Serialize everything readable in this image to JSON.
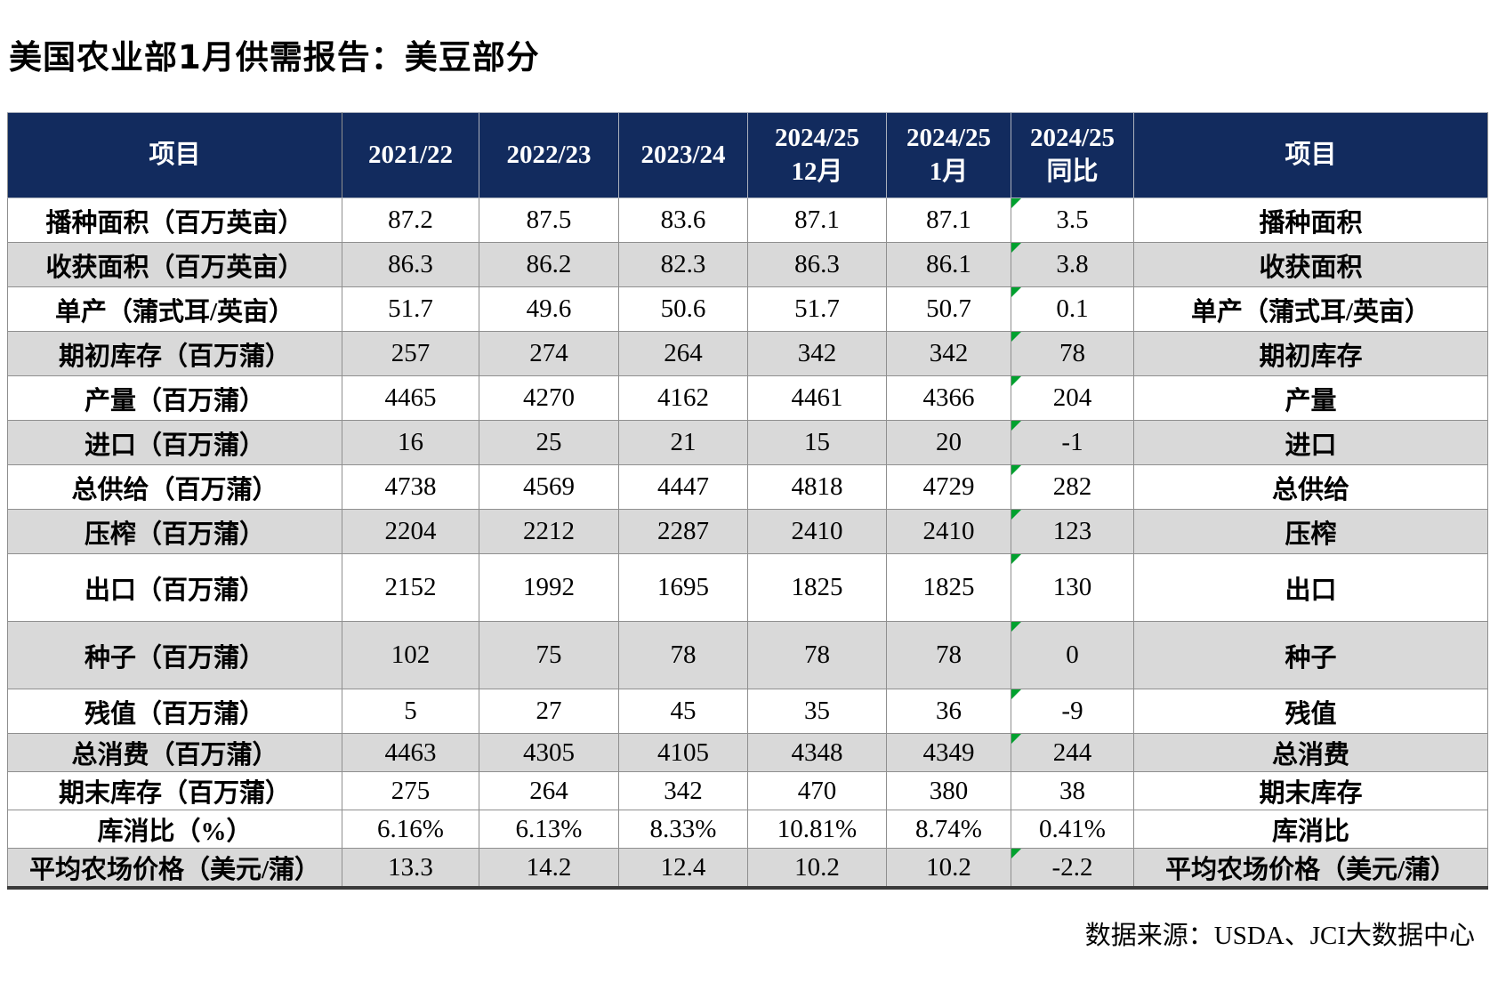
{
  "title": "美国农业部1月供需报告：美豆部分",
  "source_note": "数据来源：USDA、JCI大数据中心",
  "colors": {
    "header_bg": "#122B5E",
    "header_text": "#FFFFFF",
    "stripe_gray": "#D9D9D9",
    "value_red": "#FF0000",
    "flag_green": "#00A12F",
    "grid_line": "#8F8F8F"
  },
  "table": {
    "columns": [
      {
        "lines": [
          "项目"
        ]
      },
      {
        "lines": [
          "2021/22"
        ]
      },
      {
        "lines": [
          "2022/23"
        ]
      },
      {
        "lines": [
          "2023/24"
        ]
      },
      {
        "lines": [
          "2024/25",
          "12月"
        ]
      },
      {
        "lines": [
          "2024/25",
          "1月"
        ]
      },
      {
        "lines": [
          "2024/25",
          "同比"
        ]
      },
      {
        "lines": [
          "项目"
        ]
      }
    ],
    "rows": [
      {
        "label": "播种面积（百万英亩）",
        "values": [
          "87.2",
          "87.5",
          "83.6",
          "87.1",
          "87.1",
          "3.5"
        ],
        "label_right": "播种面积",
        "stripe": false,
        "flag": true,
        "size": "md",
        "red_cols": []
      },
      {
        "label": "收获面积（百万英亩）",
        "values": [
          "86.3",
          "86.2",
          "82.3",
          "86.3",
          "86.1",
          "3.8"
        ],
        "label_right": "收获面积",
        "stripe": true,
        "flag": true,
        "size": "md",
        "red_cols": []
      },
      {
        "label": "单产（蒲式耳/英亩）",
        "values": [
          "51.7",
          "49.6",
          "50.6",
          "51.7",
          "50.7",
          "0.1"
        ],
        "label_right": "单产（蒲式耳/英亩）",
        "stripe": false,
        "flag": true,
        "size": "md",
        "red_cols": []
      },
      {
        "label": "期初库存（百万蒲）",
        "values": [
          "257",
          "274",
          "264",
          "342",
          "342",
          "78"
        ],
        "label_right": "期初库存",
        "stripe": true,
        "flag": true,
        "size": "md",
        "red_cols": []
      },
      {
        "label": "产量（百万蒲）",
        "values": [
          "4465",
          "4270",
          "4162",
          "4461",
          "4366",
          "204"
        ],
        "label_right": "产量",
        "stripe": false,
        "flag": true,
        "size": "md",
        "red_cols": []
      },
      {
        "label": "进口（百万蒲）",
        "values": [
          "16",
          "25",
          "21",
          "15",
          "20",
          "-1"
        ],
        "label_right": "进口",
        "stripe": true,
        "flag": true,
        "size": "md",
        "red_cols": []
      },
      {
        "label": "总供给（百万蒲）",
        "values": [
          "4738",
          "4569",
          "4447",
          "4818",
          "4729",
          "282"
        ],
        "label_right": "总供给",
        "stripe": false,
        "flag": true,
        "size": "md",
        "red_cols": []
      },
      {
        "label": "压榨（百万蒲）",
        "values": [
          "2204",
          "2212",
          "2287",
          "2410",
          "2410",
          "123"
        ],
        "label_right": "压榨",
        "stripe": true,
        "flag": true,
        "size": "md",
        "red_cols": []
      },
      {
        "label": "出口（百万蒲）",
        "values": [
          "2152",
          "1992",
          "1695",
          "1825",
          "1825",
          "130"
        ],
        "label_right": "出口",
        "stripe": false,
        "flag": true,
        "size": "lg",
        "red_cols": []
      },
      {
        "label": "种子（百万蒲）",
        "values": [
          "102",
          "75",
          "78",
          "78",
          "78",
          "0"
        ],
        "label_right": "种子",
        "stripe": true,
        "flag": true,
        "size": "lg",
        "red_cols": []
      },
      {
        "label": "残值（百万蒲）",
        "values": [
          "5",
          "27",
          "45",
          "35",
          "36",
          "-9"
        ],
        "label_right": "残值",
        "stripe": false,
        "flag": true,
        "size": "md",
        "red_cols": []
      },
      {
        "label": "总消费（百万蒲）",
        "values": [
          "4463",
          "4305",
          "4105",
          "4348",
          "4349",
          "244"
        ],
        "label_right": "总消费",
        "stripe": true,
        "flag": true,
        "size": "sm",
        "red_cols": []
      },
      {
        "label": "期末库存（百万蒲）",
        "values": [
          "275",
          "264",
          "342",
          "470",
          "380",
          "38"
        ],
        "label_right": "期末库存",
        "stripe": false,
        "flag": false,
        "size": "sm",
        "red_cols": []
      },
      {
        "label": "库消比（%）",
        "values": [
          "6.16%",
          "6.13%",
          "8.33%",
          "10.81%",
          "8.74%",
          "0.41%"
        ],
        "label_right": "库消比",
        "stripe": false,
        "flag": false,
        "size": "sm",
        "red_cols": []
      },
      {
        "label": "平均农场价格（美元/蒲）",
        "values": [
          "13.3",
          "14.2",
          "12.4",
          "10.2",
          "10.2",
          "-2.2"
        ],
        "label_right": "平均农场价格（美元/蒲）",
        "stripe": true,
        "flag": true,
        "size": "sm",
        "red_cols": [
          3,
          4,
          5
        ]
      }
    ]
  }
}
